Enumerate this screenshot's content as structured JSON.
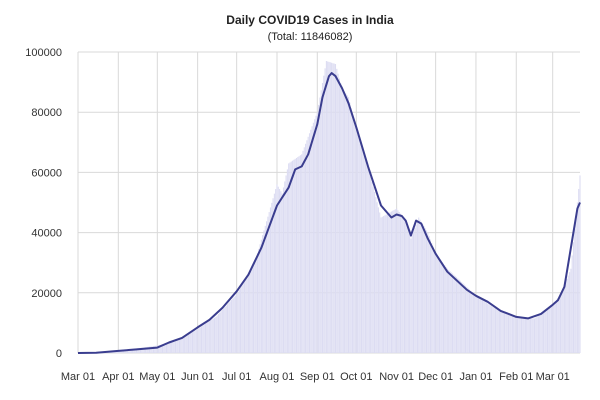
{
  "chart_data": {
    "type": "bar",
    "title": "Daily COVID19 Cases in India",
    "subtitle": "(Total: 11846082)",
    "xlabel": "",
    "ylabel": "",
    "x_start": "2020-03-01",
    "x_end": "2021-03-22",
    "ylim": [
      0,
      100000
    ],
    "grid": true,
    "y_ticks": [
      0,
      20000,
      40000,
      60000,
      80000,
      100000
    ],
    "y_tick_labels": [
      "0",
      "20000",
      "40000",
      "60000",
      "80000",
      "100000"
    ],
    "x_ticks": [
      "2020-03-01",
      "2020-04-01",
      "2020-05-01",
      "2020-06-01",
      "2020-07-01",
      "2020-08-01",
      "2020-09-01",
      "2020-10-01",
      "2020-11-01",
      "2020-12-01",
      "2021-01-01",
      "2021-02-01",
      "2021-03-01"
    ],
    "x_tick_labels": [
      "Mar 01",
      "Apr 01",
      "May 01",
      "Jun 01",
      "Jul 01",
      "Aug 01",
      "Sep 01",
      "Oct 01",
      "Nov 01",
      "Dec 01",
      "Jan 01",
      "Feb 01",
      "Mar 01"
    ],
    "bar_color": "#dcdcf2",
    "line_color": "#3a3d8f",
    "series": [
      {
        "type": "bar",
        "x_dates": [
          "2020-03-01",
          "2020-03-15",
          "2020-04-01",
          "2020-04-15",
          "2020-05-01",
          "2020-05-15",
          "2020-06-01",
          "2020-06-15",
          "2020-07-01",
          "2020-07-15",
          "2020-08-01",
          "2020-08-05",
          "2020-08-10",
          "2020-08-20",
          "2020-09-01",
          "2020-09-08",
          "2020-09-15",
          "2020-09-20",
          "2020-09-25",
          "2020-10-01",
          "2020-10-10",
          "2020-10-20",
          "2020-11-01",
          "2020-11-08",
          "2020-11-12",
          "2020-11-18",
          "2020-11-25",
          "2020-12-01",
          "2020-12-10",
          "2020-12-20",
          "2021-01-01",
          "2021-01-15",
          "2021-02-01",
          "2021-02-15",
          "2021-03-01",
          "2021-03-08",
          "2021-03-15",
          "2021-03-20",
          "2021-03-22"
        ],
        "values": [
          0,
          100,
          800,
          1500,
          2500,
          3800,
          8000,
          12000,
          19500,
          30000,
          56000,
          53000,
          63000,
          66000,
          80000,
          97000,
          96000,
          88000,
          85000,
          74000,
          62000,
          45000,
          48000,
          44000,
          38000,
          45000,
          40000,
          33000,
          28000,
          24000,
          19000,
          15000,
          12000,
          11500,
          16000,
          20000,
          28000,
          50000,
          59000
        ]
      },
      {
        "type": "line",
        "x_dates": [
          "2020-03-01",
          "2020-03-15",
          "2020-04-01",
          "2020-04-15",
          "2020-05-01",
          "2020-05-10",
          "2020-05-20",
          "2020-06-01",
          "2020-06-10",
          "2020-06-20",
          "2020-07-01",
          "2020-07-10",
          "2020-07-20",
          "2020-08-01",
          "2020-08-10",
          "2020-08-15",
          "2020-08-20",
          "2020-08-25",
          "2020-09-01",
          "2020-09-05",
          "2020-09-10",
          "2020-09-12",
          "2020-09-15",
          "2020-09-20",
          "2020-09-25",
          "2020-10-01",
          "2020-10-10",
          "2020-10-20",
          "2020-10-28",
          "2020-11-01",
          "2020-11-05",
          "2020-11-08",
          "2020-11-12",
          "2020-11-16",
          "2020-11-20",
          "2020-11-25",
          "2020-12-01",
          "2020-12-10",
          "2020-12-20",
          "2020-12-25",
          "2021-01-01",
          "2021-01-10",
          "2021-01-20",
          "2021-02-01",
          "2021-02-10",
          "2021-02-20",
          "2021-03-01",
          "2021-03-05",
          "2021-03-10",
          "2021-03-15",
          "2021-03-20",
          "2021-03-22"
        ],
        "values": [
          0,
          100,
          700,
          1200,
          1800,
          3500,
          5000,
          8500,
          11000,
          15000,
          20500,
          26000,
          35000,
          49000,
          55000,
          61000,
          62000,
          66000,
          76000,
          85000,
          92000,
          93000,
          92000,
          88000,
          83000,
          75000,
          62000,
          49000,
          45000,
          46000,
          45500,
          44000,
          39000,
          44000,
          43000,
          38000,
          33000,
          27000,
          23000,
          21000,
          19000,
          17000,
          14000,
          12000,
          11500,
          13000,
          16000,
          17500,
          22000,
          35000,
          48000,
          50000
        ]
      }
    ]
  }
}
